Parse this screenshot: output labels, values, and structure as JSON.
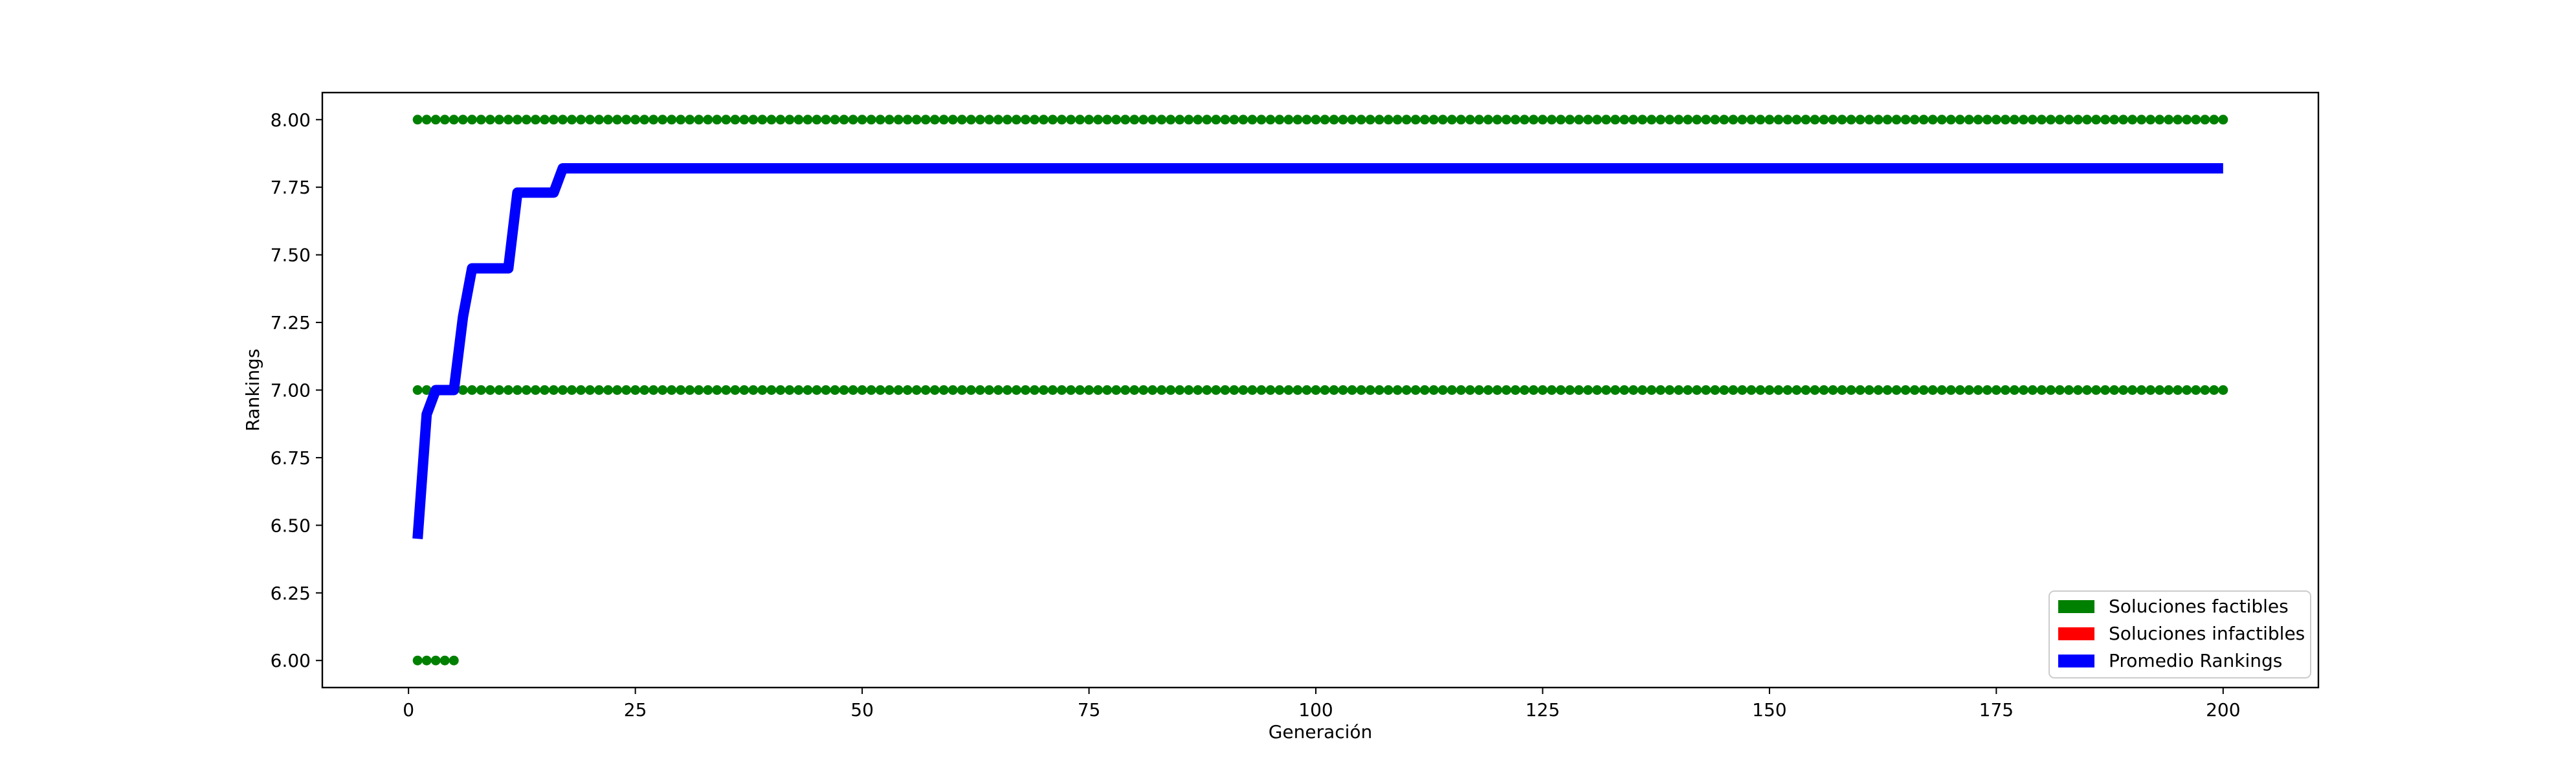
{
  "chart_data": {
    "type": "line",
    "xlabel": "Generación",
    "ylabel": "Rankings",
    "xlim": [
      -9.5,
      210.5
    ],
    "ylim": [
      5.9,
      8.1
    ],
    "x_ticks": [
      0,
      25,
      50,
      75,
      100,
      125,
      150,
      175,
      200
    ],
    "x_tick_labels": [
      "0",
      "25",
      "50",
      "75",
      "100",
      "125",
      "150",
      "175",
      "200"
    ],
    "y_ticks": [
      6.0,
      6.25,
      6.5,
      6.75,
      7.0,
      7.25,
      7.5,
      7.75,
      8.0
    ],
    "y_tick_labels": [
      "6.00",
      "6.25",
      "6.50",
      "6.75",
      "7.00",
      "7.25",
      "7.50",
      "7.75",
      "8.00"
    ],
    "grid": false,
    "legend_position": "lower right",
    "legend": [
      {
        "label": "Soluciones factibles",
        "color": "#008000"
      },
      {
        "label": "Soluciones infactibles",
        "color": "#ff0000"
      },
      {
        "label": "Promedio Rankings",
        "color": "#0000ff"
      }
    ],
    "series": [
      {
        "name": "Soluciones factibles",
        "kind": "scatter",
        "color": "#008000",
        "segments": [
          {
            "x_from": 1,
            "x_to": 200,
            "y": 8.0
          },
          {
            "x_from": 1,
            "x_to": 200,
            "y": 7.0
          },
          {
            "x_from": 1,
            "x_to": 5,
            "y": 6.0
          }
        ]
      },
      {
        "name": "Soluciones infactibles",
        "kind": "scatter",
        "color": "#ff0000",
        "points": []
      },
      {
        "name": "Promedio Rankings",
        "kind": "line",
        "color": "#0000ff",
        "points": [
          [
            1,
            6.45
          ],
          [
            2,
            6.91
          ],
          [
            3,
            7.0
          ],
          [
            4,
            7.0
          ],
          [
            5,
            7.0
          ],
          [
            6,
            7.27
          ],
          [
            7,
            7.45
          ],
          [
            8,
            7.45
          ],
          [
            9,
            7.45
          ],
          [
            10,
            7.45
          ],
          [
            11,
            7.45
          ],
          [
            12,
            7.73
          ],
          [
            13,
            7.73
          ],
          [
            14,
            7.73
          ],
          [
            15,
            7.73
          ],
          [
            16,
            7.73
          ],
          [
            17,
            7.82
          ],
          [
            200,
            7.82
          ]
        ]
      }
    ]
  }
}
